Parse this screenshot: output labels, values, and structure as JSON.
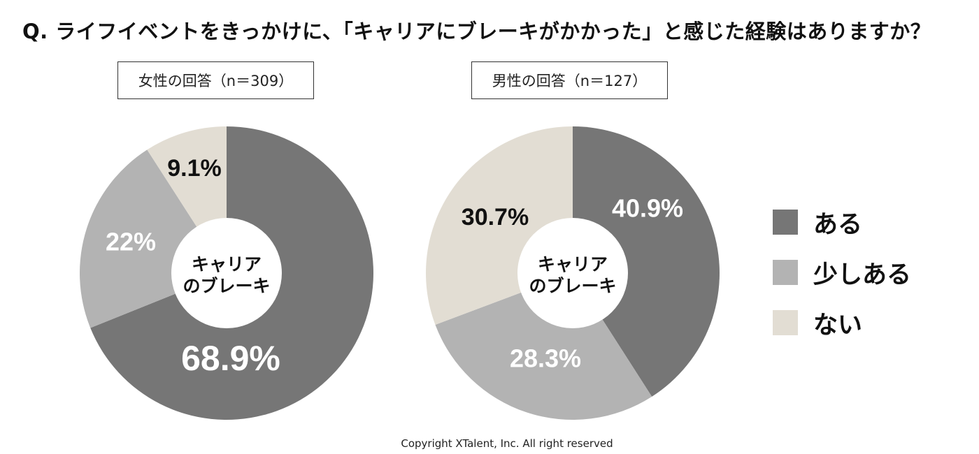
{
  "title": "Q. ライフイベントをきっかけに、「キャリアにブレーキがかかった」と感じた経験はありますか？",
  "colors": {
    "aru": "#767676",
    "sukoshi": "#b3b3b3",
    "nai": "#e2ddd3",
    "center": "#ffffff"
  },
  "center_label": [
    "キャリア",
    "のブレーキ"
  ],
  "legend": [
    {
      "label": "ある",
      "color": "#767676"
    },
    {
      "label": "少しある",
      "color": "#b3b3b3"
    },
    {
      "label": "ない",
      "color": "#e2ddd3"
    }
  ],
  "chart_data": [
    {
      "type": "pie",
      "title": "女性の回答（n＝309）",
      "categories": [
        "ある",
        "少しある",
        "ない"
      ],
      "values": [
        68.9,
        22,
        9.1
      ],
      "labels": [
        "68.9%",
        "22%",
        "9.1%"
      ]
    },
    {
      "type": "pie",
      "title": "男性の回答（n＝127）",
      "categories": [
        "ある",
        "少しある",
        "ない"
      ],
      "values": [
        40.9,
        28.3,
        30.7
      ],
      "labels": [
        "40.9%",
        "28.3%",
        "30.7%"
      ]
    }
  ],
  "copyright": "Copyright XTalent, Inc. All right reserved"
}
